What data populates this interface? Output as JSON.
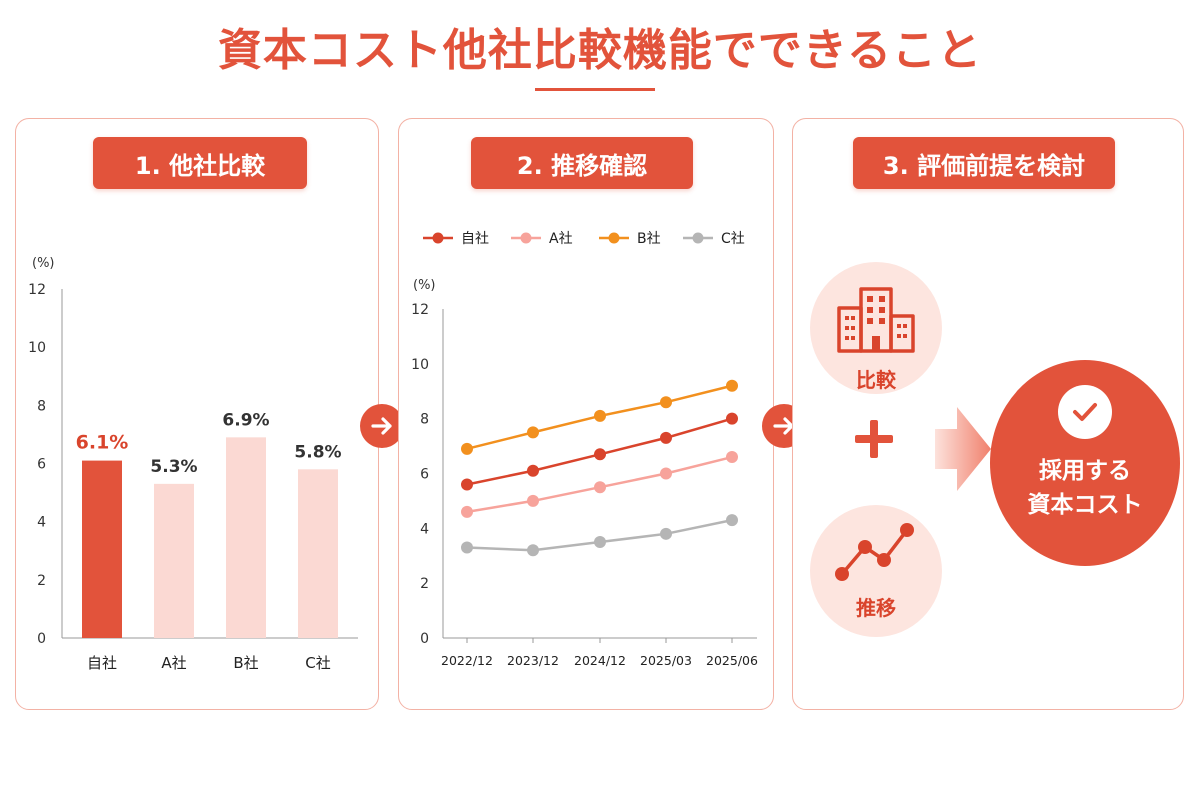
{
  "page": {
    "title": "資本コスト他社比較機能でできること"
  },
  "panels": {
    "compare": {
      "label": "1. 他社比較"
    },
    "trend": {
      "label": "2. 推移確認"
    },
    "evaluate": {
      "label": "3. 評価前提を検討"
    }
  },
  "evaluate": {
    "compare_label": "比較",
    "trend_label": "推移",
    "result_line1": "採用する",
    "result_line2": "資本コスト"
  },
  "colors": {
    "accent": "#e2533b",
    "self": "#d9442c",
    "a_company": "#f7a39b",
    "b_company": "#f2901e",
    "c_company": "#b5b5b5",
    "bar_self": "#e2533b",
    "bar_other": "#fbd9d3"
  },
  "chart_data": [
    {
      "type": "bar",
      "unit_label": "(%)",
      "categories": [
        "自社",
        "A社",
        "B社",
        "C社"
      ],
      "values": [
        6.1,
        5.3,
        6.9,
        5.8
      ],
      "value_labels": [
        "6.1%",
        "5.3%",
        "6.9%",
        "5.8%"
      ],
      "ylim": [
        0,
        12
      ],
      "yticks": [
        "0",
        "2",
        "4",
        "6",
        "8",
        "10",
        "12"
      ]
    },
    {
      "type": "line",
      "unit_label": "(%)",
      "x": [
        "2022/12",
        "2023/12",
        "2024/12",
        "2025/03",
        "2025/06"
      ],
      "ylim": [
        0,
        12
      ],
      "yticks": [
        "0",
        "2",
        "4",
        "6",
        "8",
        "10",
        "12"
      ],
      "legend": "top",
      "series": [
        {
          "name": "自社",
          "values": [
            5.6,
            6.1,
            6.7,
            7.3,
            8.0
          ]
        },
        {
          "name": "A社",
          "values": [
            4.6,
            5.0,
            5.5,
            6.0,
            6.6
          ]
        },
        {
          "name": "B社",
          "values": [
            6.9,
            7.5,
            8.1,
            8.6,
            9.2
          ]
        },
        {
          "name": "C社",
          "values": [
            3.3,
            3.2,
            3.5,
            3.8,
            4.3
          ]
        }
      ]
    }
  ]
}
